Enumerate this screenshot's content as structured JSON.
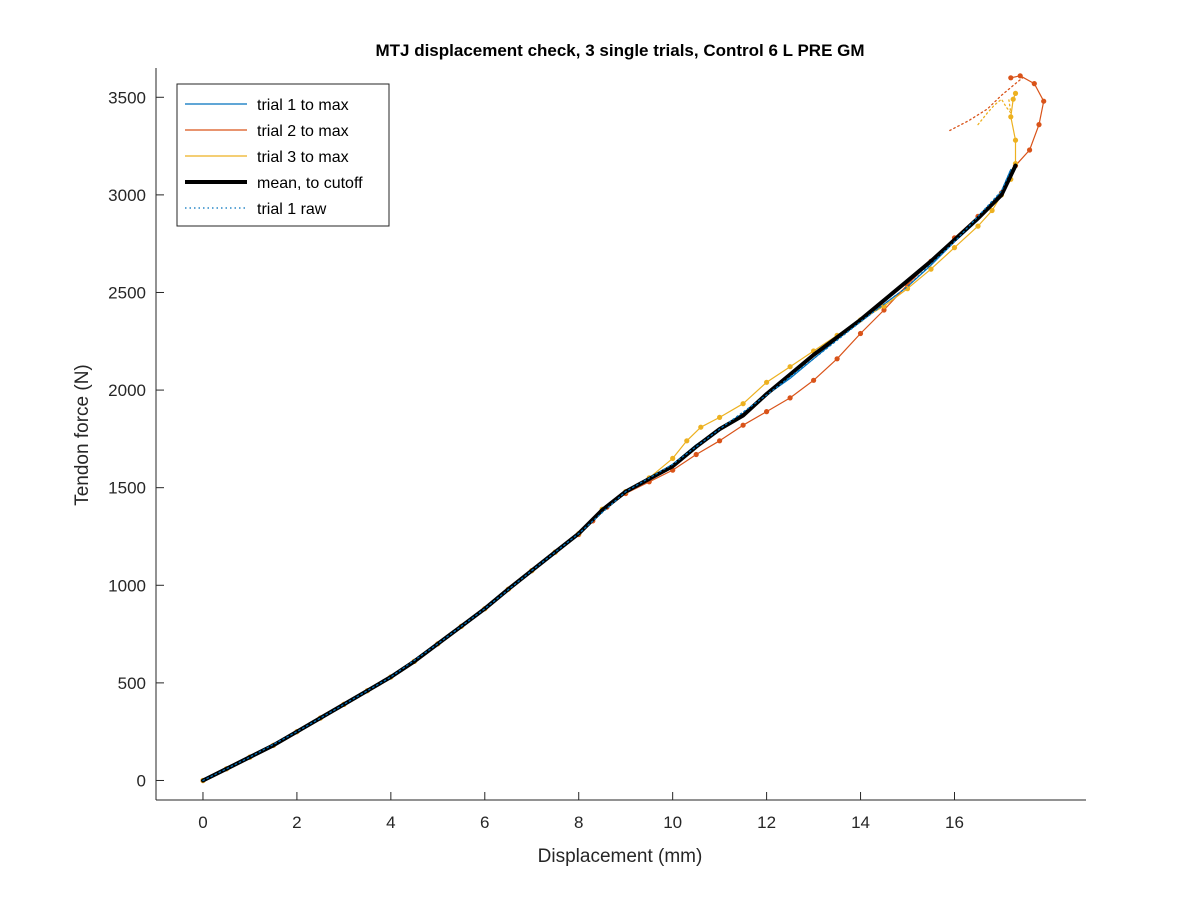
{
  "chart_data": {
    "type": "line",
    "title": "MTJ displacement check, 3 single trials, Control 6 L PRE GM",
    "xlabel": "Displacement (mm)",
    "ylabel": "Tendon force (N)",
    "xlim": [
      -1,
      18.8
    ],
    "ylim": [
      -100,
      3650
    ],
    "xticks": [
      0,
      2,
      4,
      6,
      8,
      10,
      12,
      14,
      16
    ],
    "yticks": [
      0,
      500,
      1000,
      1500,
      2000,
      2500,
      3000,
      3500
    ],
    "xtick_labels": [
      "0",
      "2",
      "4",
      "6",
      "8",
      "10",
      "12",
      "14",
      "16"
    ],
    "ytick_labels": [
      "0",
      "500",
      "1000",
      "1500",
      "2000",
      "2500",
      "3000",
      "3500"
    ],
    "grid": false,
    "legend_position": "top-left",
    "series": [
      {
        "name": "trial 1 to max",
        "color": "#0072BD",
        "style": "solid",
        "x": [
          0,
          0.5,
          1,
          1.5,
          2,
          2.5,
          3,
          3.5,
          4,
          4.5,
          5,
          5.5,
          6,
          6.5,
          7,
          7.5,
          8,
          8.5,
          9,
          9.5,
          10,
          10.5,
          11,
          11.5,
          12,
          12.5,
          13,
          13.5,
          14,
          14.5,
          15,
          15.5,
          16,
          16.5,
          17,
          17.2
        ],
        "y": [
          0,
          60,
          120,
          180,
          250,
          320,
          390,
          460,
          530,
          610,
          700,
          790,
          880,
          980,
          1075,
          1170,
          1265,
          1390,
          1480,
          1545,
          1620,
          1720,
          1800,
          1880,
          1975,
          2060,
          2160,
          2260,
          2350,
          2440,
          2530,
          2640,
          2760,
          2870,
          3020,
          3130
        ]
      },
      {
        "name": "trial 2 to max",
        "color": "#D95319",
        "style": "solid-with-markers",
        "x": [
          0,
          0.5,
          1,
          1.5,
          2,
          2.5,
          3,
          3.5,
          4,
          4.5,
          5,
          5.5,
          6,
          6.5,
          7,
          7.5,
          8,
          8.3,
          8.6,
          9,
          9.5,
          10,
          10.5,
          11,
          11.5,
          12,
          12.5,
          13,
          13.5,
          14,
          14.5,
          15,
          15.5,
          16,
          16.5,
          17,
          17.3,
          17.6,
          17.8,
          17.9,
          17.7,
          17.4,
          17.2
        ],
        "y": [
          0,
          60,
          120,
          180,
          250,
          320,
          390,
          460,
          530,
          610,
          700,
          790,
          880,
          980,
          1075,
          1170,
          1260,
          1330,
          1400,
          1470,
          1530,
          1590,
          1670,
          1740,
          1820,
          1890,
          1960,
          2050,
          2160,
          2290,
          2410,
          2540,
          2660,
          2780,
          2890,
          3010,
          3150,
          3230,
          3360,
          3480,
          3570,
          3610,
          3600
        ]
      },
      {
        "name": "trial 3 to max",
        "color": "#EDB120",
        "style": "solid-with-markers",
        "x": [
          0,
          0.5,
          1,
          1.5,
          2,
          2.5,
          3,
          3.5,
          4,
          4.5,
          5,
          5.5,
          6,
          6.5,
          7,
          7.5,
          8,
          8.5,
          9,
          9.5,
          10,
          10.3,
          10.6,
          11,
          11.5,
          12,
          12.5,
          13,
          13.5,
          14,
          14.5,
          15,
          15.5,
          16,
          16.5,
          16.8,
          17,
          17.2,
          17.3,
          17.3,
          17.2,
          17.25,
          17.3
        ],
        "y": [
          0,
          60,
          120,
          180,
          250,
          320,
          390,
          460,
          530,
          610,
          700,
          790,
          880,
          980,
          1075,
          1170,
          1265,
          1390,
          1480,
          1550,
          1650,
          1740,
          1810,
          1860,
          1930,
          2040,
          2120,
          2200,
          2280,
          2360,
          2430,
          2520,
          2620,
          2730,
          2840,
          2920,
          3000,
          3080,
          3160,
          3280,
          3400,
          3490,
          3520
        ]
      },
      {
        "name": "mean, to cutoff",
        "color": "#000000",
        "style": "thick",
        "x": [
          0,
          0.5,
          1,
          1.5,
          2,
          2.5,
          3,
          3.5,
          4,
          4.5,
          5,
          5.5,
          6,
          6.5,
          7,
          7.5,
          8,
          8.5,
          9,
          9.5,
          10,
          10.5,
          11,
          11.5,
          12,
          12.5,
          13,
          13.5,
          14,
          14.5,
          15,
          15.5,
          16,
          16.5,
          17,
          17.3
        ],
        "y": [
          0,
          60,
          120,
          180,
          250,
          320,
          390,
          460,
          530,
          610,
          700,
          790,
          880,
          980,
          1075,
          1170,
          1265,
          1385,
          1480,
          1545,
          1610,
          1710,
          1800,
          1870,
          1980,
          2080,
          2180,
          2270,
          2360,
          2460,
          2560,
          2660,
          2770,
          2880,
          3000,
          3150
        ]
      },
      {
        "name": "trial 1 raw",
        "color": "#0072BD",
        "style": "dotted",
        "x": [
          0,
          1,
          2,
          3,
          4,
          5,
          6,
          7,
          8,
          9,
          10,
          11,
          12,
          13,
          14,
          15,
          16,
          17,
          17.2
        ],
        "y": [
          0,
          120,
          250,
          390,
          530,
          700,
          880,
          1075,
          1265,
          1480,
          1620,
          1800,
          1975,
          2160,
          2350,
          2530,
          2760,
          3020,
          3130
        ]
      },
      {
        "name": "",
        "color": "#D95319",
        "style": "dotted",
        "x": [
          15.9,
          16.3,
          16.7,
          17.0,
          17.3,
          17.45
        ],
        "y": [
          3330,
          3380,
          3440,
          3510,
          3570,
          3600
        ]
      },
      {
        "name": "",
        "color": "#EDB120",
        "style": "dotted",
        "x": [
          16.5,
          16.7,
          16.85,
          17.0,
          17.1,
          17.2,
          17.15
        ],
        "y": [
          3360,
          3420,
          3460,
          3490,
          3450,
          3420,
          3500
        ]
      }
    ]
  }
}
